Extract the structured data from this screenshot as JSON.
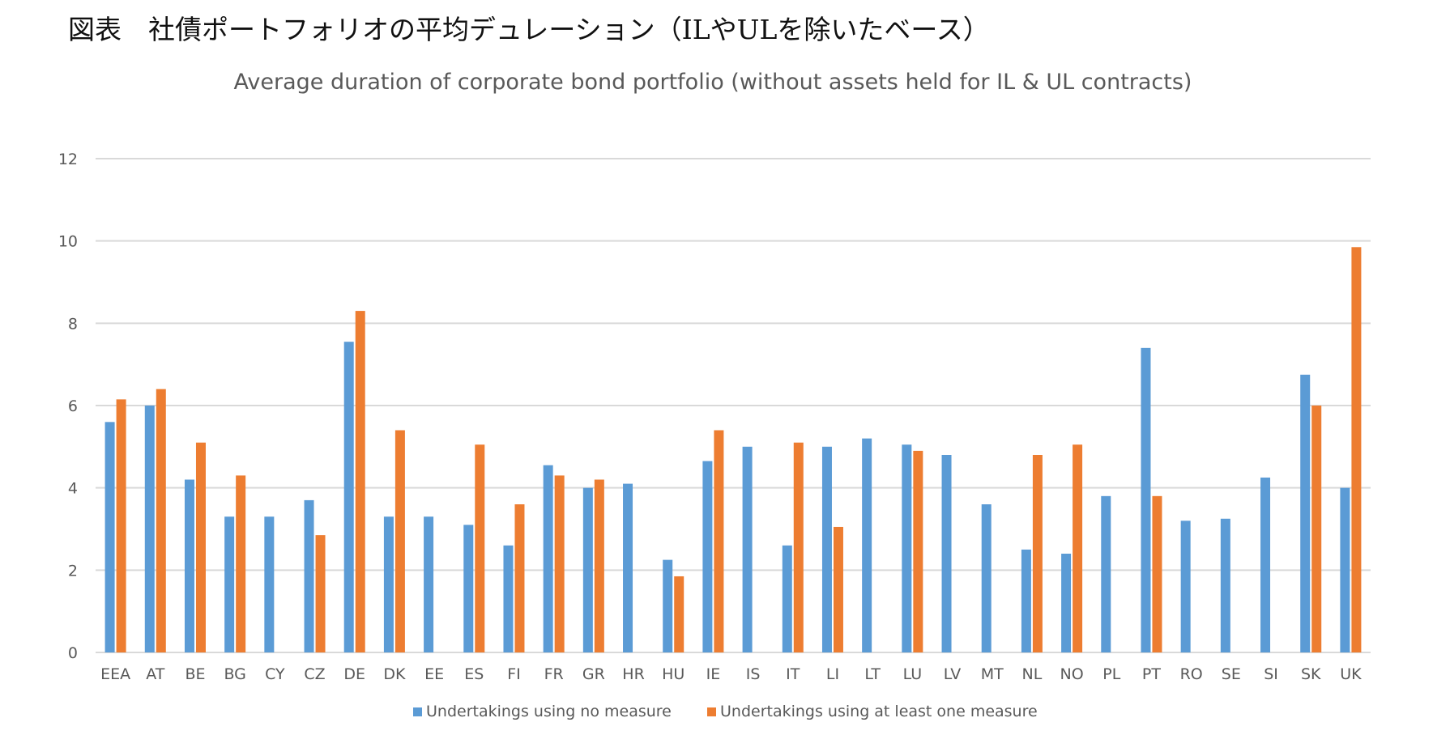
{
  "header": {
    "jp_title": "図表　社債ポートフォリオの平均デュレーション（ILやULを除いたベース）"
  },
  "chart_data": {
    "type": "bar",
    "title": "Average duration of corporate bond portfolio (without assets held for IL & UL contracts)",
    "xlabel": "",
    "ylabel": "",
    "ylim": [
      0,
      12
    ],
    "yticks": [
      0,
      2,
      4,
      6,
      8,
      10,
      12
    ],
    "grid": true,
    "legend_position": "bottom",
    "categories": [
      "EEA",
      "AT",
      "BE",
      "BG",
      "CY",
      "CZ",
      "DE",
      "DK",
      "EE",
      "ES",
      "FI",
      "FR",
      "GR",
      "HR",
      "HU",
      "IE",
      "IS",
      "IT",
      "LI",
      "LT",
      "LU",
      "LV",
      "MT",
      "NL",
      "NO",
      "PL",
      "PT",
      "RO",
      "SE",
      "SI",
      "SK",
      "UK"
    ],
    "series": [
      {
        "name": "Undertakings using no measure",
        "color": "#5b9bd5",
        "values": [
          5.6,
          6.0,
          4.2,
          3.3,
          3.3,
          3.7,
          7.55,
          3.3,
          3.3,
          3.1,
          2.6,
          4.55,
          4.0,
          4.1,
          2.25,
          4.65,
          5.0,
          2.6,
          5.0,
          5.2,
          5.05,
          4.8,
          3.6,
          2.5,
          2.4,
          3.8,
          7.4,
          3.2,
          3.25,
          4.25,
          6.75,
          4.0
        ]
      },
      {
        "name": "Undertakings using at least one measure",
        "color": "#ed7d31",
        "values": [
          6.15,
          6.4,
          5.1,
          4.3,
          null,
          2.85,
          8.3,
          5.4,
          null,
          5.05,
          3.6,
          4.3,
          4.2,
          null,
          1.85,
          5.4,
          null,
          5.1,
          3.05,
          null,
          4.9,
          null,
          null,
          4.8,
          5.05,
          null,
          3.8,
          null,
          null,
          null,
          6.0,
          9.85
        ]
      }
    ]
  }
}
